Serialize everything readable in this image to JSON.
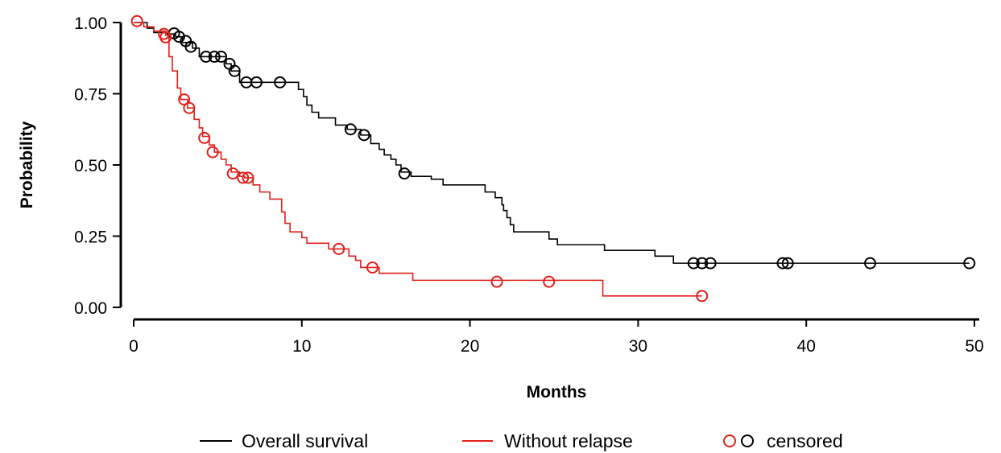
{
  "chart_data": {
    "type": "line",
    "subtype": "kaplan-meier step curve",
    "xlabel": "Months",
    "ylabel": "Probability",
    "xlim": [
      0,
      50
    ],
    "ylim": [
      0,
      1
    ],
    "x_ticks": [
      0,
      10,
      20,
      30,
      40,
      50
    ],
    "y_ticks": [
      0,
      0.25,
      0.5,
      0.75,
      1.0
    ],
    "x_tick_labels": [
      "0",
      "10",
      "20",
      "30",
      "40",
      "50"
    ],
    "y_tick_labels": [
      "0.00",
      "0.25",
      "0.50",
      "0.75",
      "1.00"
    ],
    "grid": false,
    "legend_position": "bottom",
    "series": [
      {
        "name": "Overall survival",
        "color": "#000000",
        "steps": [
          [
            0,
            1.0
          ],
          [
            0.8,
            0.98
          ],
          [
            1.2,
            0.965
          ],
          [
            2.0,
            0.96
          ],
          [
            2.5,
            0.95
          ],
          [
            2.9,
            0.93
          ],
          [
            3.5,
            0.91
          ],
          [
            3.9,
            0.88
          ],
          [
            5.5,
            0.855
          ],
          [
            5.8,
            0.83
          ],
          [
            6.3,
            0.79
          ],
          [
            9.8,
            0.765
          ],
          [
            10.1,
            0.74
          ],
          [
            10.3,
            0.71
          ],
          [
            10.6,
            0.685
          ],
          [
            11.0,
            0.665
          ],
          [
            12.0,
            0.64
          ],
          [
            12.7,
            0.625
          ],
          [
            13.5,
            0.605
          ],
          [
            14.1,
            0.575
          ],
          [
            14.6,
            0.555
          ],
          [
            14.9,
            0.535
          ],
          [
            15.3,
            0.52
          ],
          [
            15.6,
            0.5
          ],
          [
            15.9,
            0.475
          ],
          [
            16.5,
            0.46
          ],
          [
            17.7,
            0.45
          ],
          [
            18.4,
            0.43
          ],
          [
            20.9,
            0.405
          ],
          [
            21.5,
            0.385
          ],
          [
            21.9,
            0.36
          ],
          [
            22.0,
            0.34
          ],
          [
            22.2,
            0.315
          ],
          [
            22.4,
            0.29
          ],
          [
            22.6,
            0.265
          ],
          [
            24.7,
            0.24
          ],
          [
            25.2,
            0.22
          ],
          [
            28.0,
            0.2
          ],
          [
            31.0,
            0.18
          ],
          [
            32.1,
            0.155
          ],
          [
            49.7,
            0.155
          ]
        ],
        "censored": [
          [
            2.4,
            0.962
          ],
          [
            2.7,
            0.95
          ],
          [
            3.1,
            0.935
          ],
          [
            3.4,
            0.915
          ],
          [
            4.3,
            0.88
          ],
          [
            4.8,
            0.88
          ],
          [
            5.2,
            0.88
          ],
          [
            5.7,
            0.855
          ],
          [
            6.0,
            0.83
          ],
          [
            6.7,
            0.79
          ],
          [
            7.3,
            0.79
          ],
          [
            8.7,
            0.79
          ],
          [
            12.9,
            0.625
          ],
          [
            13.7,
            0.605
          ],
          [
            16.1,
            0.47
          ],
          [
            33.3,
            0.155
          ],
          [
            33.8,
            0.155
          ],
          [
            34.3,
            0.155
          ],
          [
            38.6,
            0.155
          ],
          [
            38.9,
            0.155
          ],
          [
            43.8,
            0.155
          ],
          [
            49.7,
            0.155
          ]
        ]
      },
      {
        "name": "Without relapse",
        "color": "#e0201a",
        "steps": [
          [
            0,
            1.0
          ],
          [
            0.6,
            0.985
          ],
          [
            1.2,
            0.97
          ],
          [
            1.9,
            0.955
          ],
          [
            2.1,
            0.88
          ],
          [
            2.3,
            0.83
          ],
          [
            2.6,
            0.77
          ],
          [
            2.8,
            0.73
          ],
          [
            3.2,
            0.7
          ],
          [
            3.6,
            0.66
          ],
          [
            3.9,
            0.63
          ],
          [
            4.1,
            0.6
          ],
          [
            4.5,
            0.57
          ],
          [
            4.8,
            0.545
          ],
          [
            5.2,
            0.52
          ],
          [
            5.5,
            0.5
          ],
          [
            5.8,
            0.475
          ],
          [
            6.3,
            0.46
          ],
          [
            6.6,
            0.455
          ],
          [
            7.1,
            0.43
          ],
          [
            7.5,
            0.405
          ],
          [
            8.1,
            0.38
          ],
          [
            8.8,
            0.335
          ],
          [
            9.0,
            0.295
          ],
          [
            9.3,
            0.265
          ],
          [
            10.0,
            0.245
          ],
          [
            10.3,
            0.225
          ],
          [
            11.6,
            0.205
          ],
          [
            12.8,
            0.18
          ],
          [
            13.2,
            0.165
          ],
          [
            13.5,
            0.14
          ],
          [
            14.6,
            0.12
          ],
          [
            16.6,
            0.095
          ],
          [
            27.9,
            0.04
          ],
          [
            33.8,
            0.04
          ]
        ],
        "censored": [
          [
            0.2,
            1.005
          ],
          [
            1.8,
            0.96
          ],
          [
            1.9,
            0.948
          ],
          [
            3.0,
            0.73
          ],
          [
            3.3,
            0.7
          ],
          [
            4.2,
            0.595
          ],
          [
            4.7,
            0.545
          ],
          [
            5.9,
            0.47
          ],
          [
            6.5,
            0.455
          ],
          [
            6.8,
            0.455
          ],
          [
            12.2,
            0.205
          ],
          [
            14.2,
            0.14
          ],
          [
            21.6,
            0.09
          ],
          [
            24.7,
            0.09
          ],
          [
            33.8,
            0.04
          ]
        ]
      }
    ],
    "legend": {
      "items": [
        "Overall survival",
        "Without relapse"
      ],
      "censored_label": "censored"
    }
  }
}
